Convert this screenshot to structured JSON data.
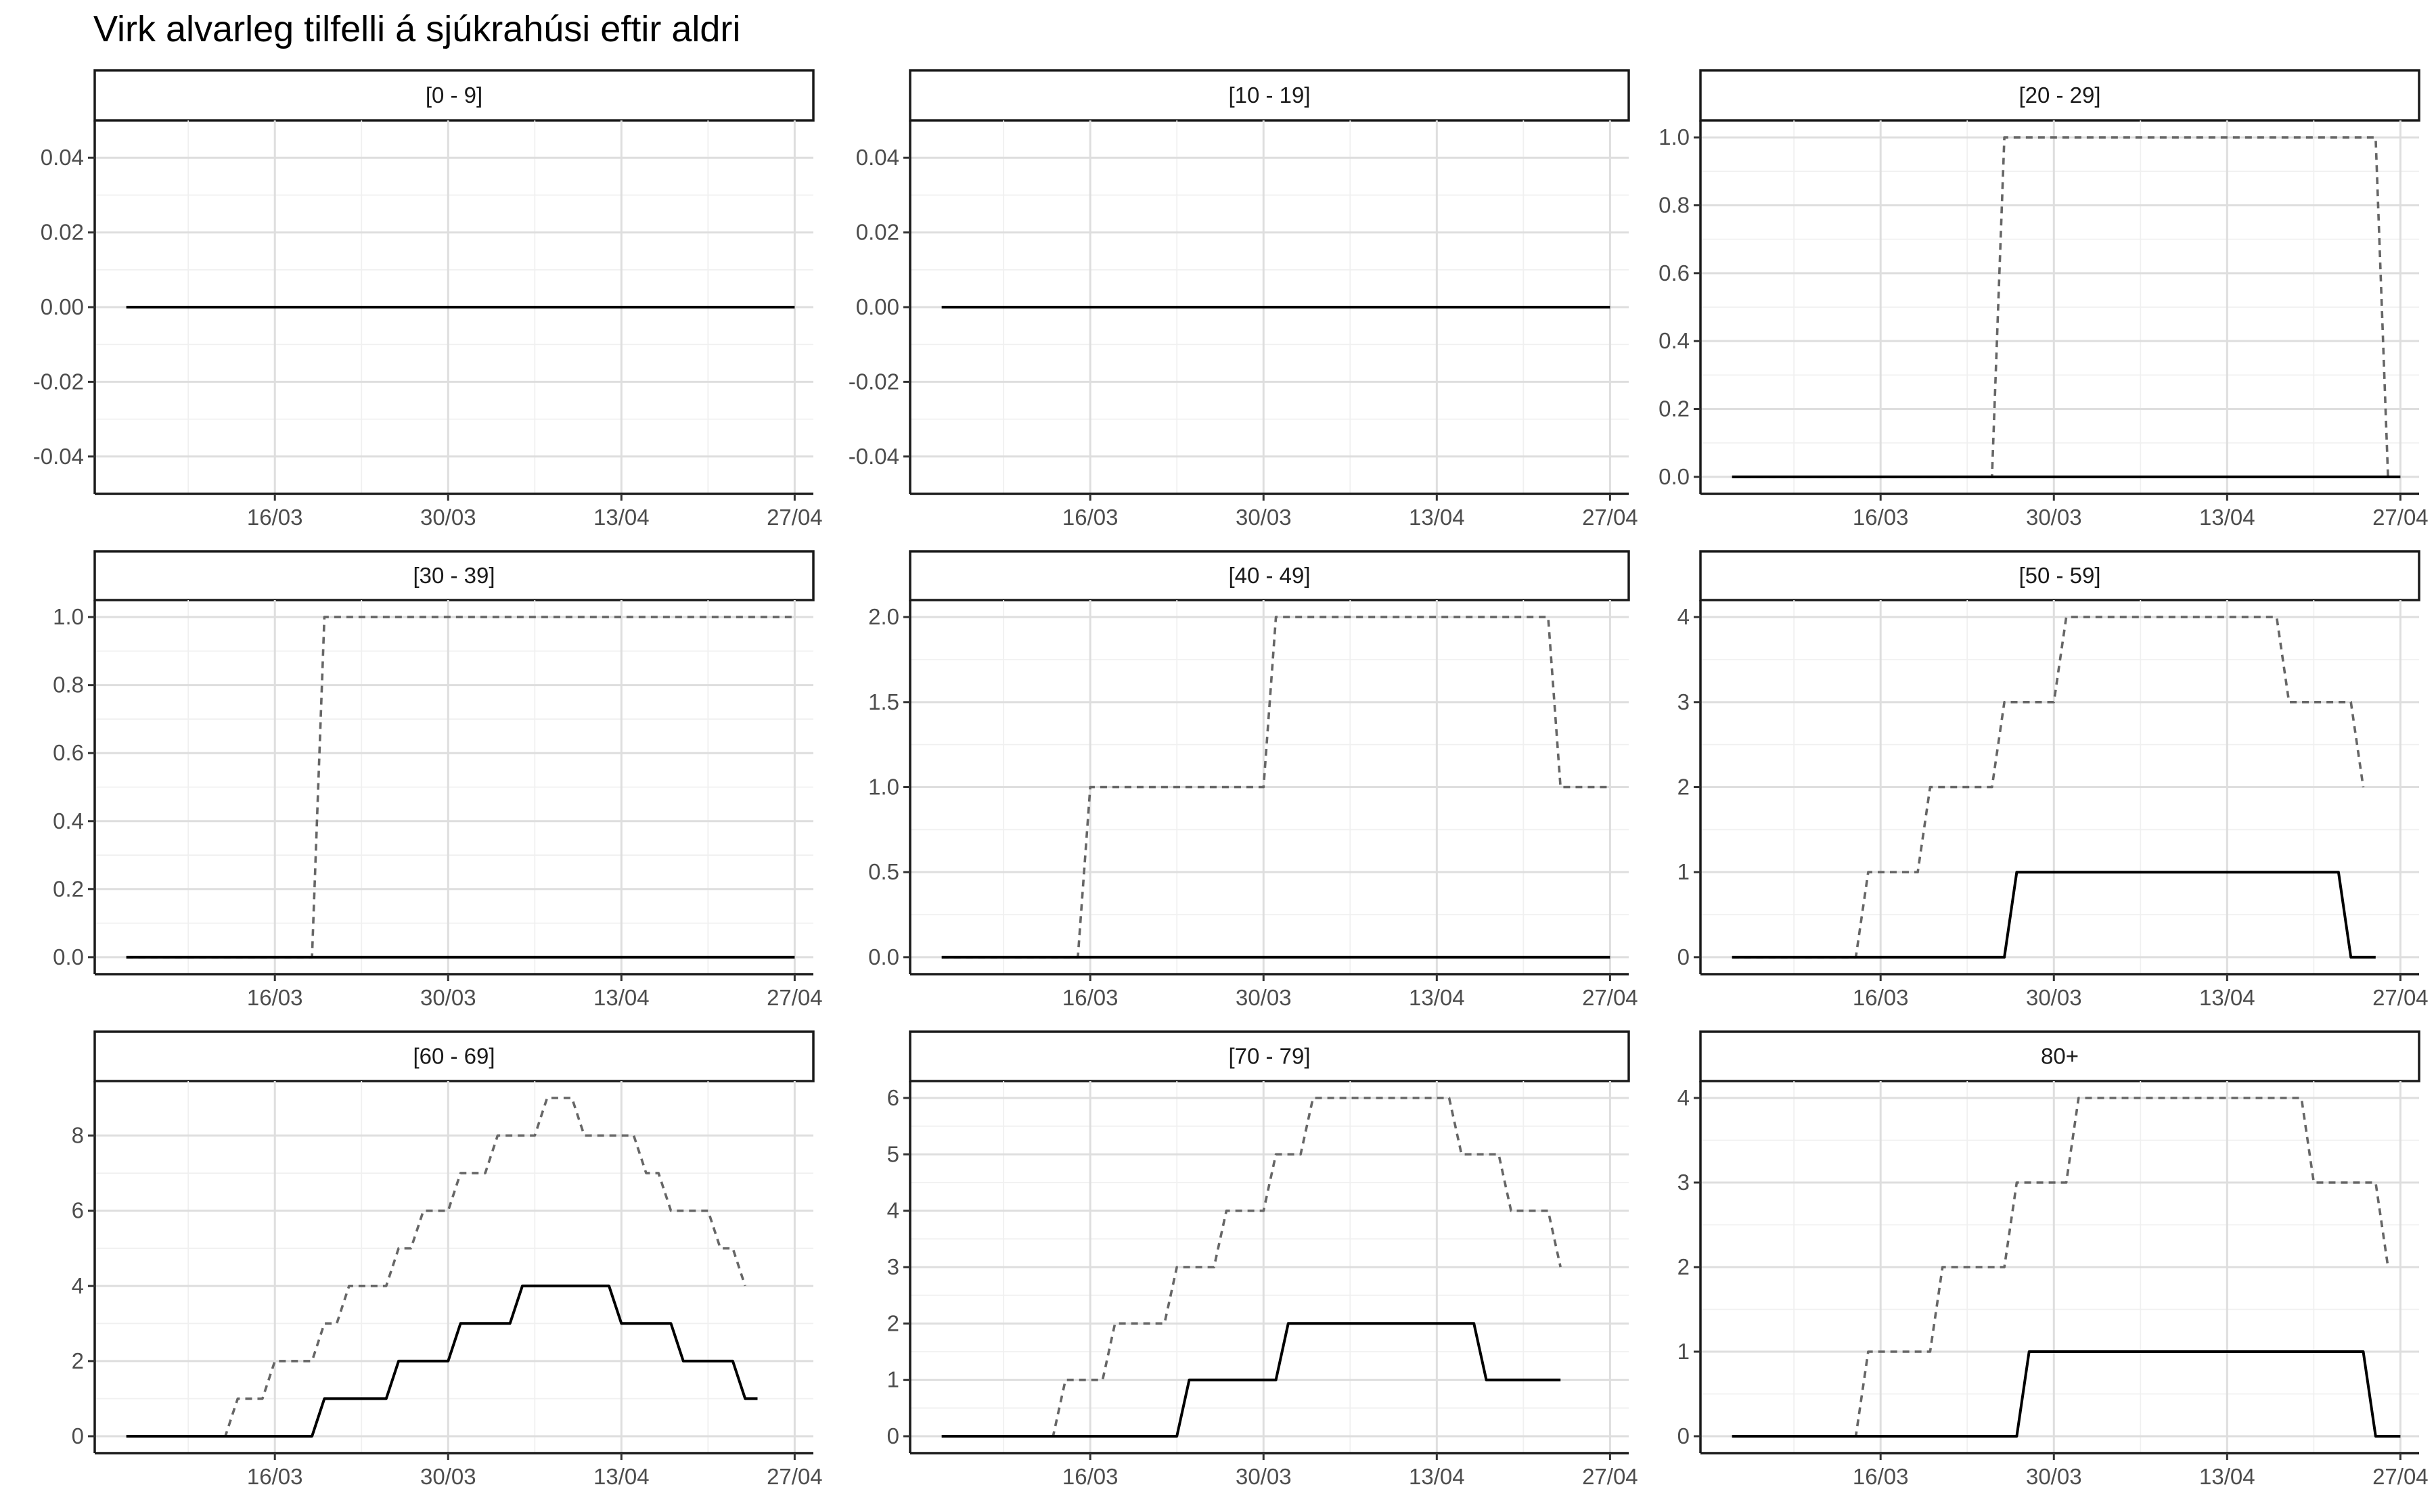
{
  "chart_data": {
    "type": "line",
    "title": "Virk alvarleg tilfelli á sjúkrahúsi eftir aldri",
    "xlabel": "",
    "ylabel": "",
    "x_start": "2020-03-04",
    "x_end": "2020-04-27",
    "x_ticks": [
      {
        "date": "2020-03-16",
        "label": "16/03"
      },
      {
        "date": "2020-03-30",
        "label": "30/03"
      },
      {
        "date": "2020-04-13",
        "label": "13/04"
      },
      {
        "date": "2020-04-27",
        "label": "27/04"
      }
    ],
    "grid": true,
    "legend": "none",
    "series_styles": {
      "dashed": {
        "color": "#666666",
        "dash": "10 8"
      },
      "solid": {
        "color": "#000000",
        "dash": ""
      }
    },
    "panels": [
      {
        "label": "[0 - 9]",
        "ylim": [
          -0.05,
          0.05
        ],
        "y_ticks": [
          {
            "value": -0.04,
            "label": "-0.04"
          },
          {
            "value": -0.02,
            "label": "-0.02"
          },
          {
            "value": 0,
            "label": "0.00"
          },
          {
            "value": 0.02,
            "label": "0.02"
          },
          {
            "value": 0.04,
            "label": "0.04"
          }
        ],
        "dashed": [
          [
            "2020-03-04",
            0
          ],
          [
            "2020-04-27",
            0
          ]
        ],
        "solid": [
          [
            "2020-03-04",
            0
          ],
          [
            "2020-04-27",
            0
          ]
        ]
      },
      {
        "label": "[10 - 19]",
        "ylim": [
          -0.05,
          0.05
        ],
        "y_ticks": [
          {
            "value": -0.04,
            "label": "-0.04"
          },
          {
            "value": -0.02,
            "label": "-0.02"
          },
          {
            "value": 0,
            "label": "0.00"
          },
          {
            "value": 0.02,
            "label": "0.02"
          },
          {
            "value": 0.04,
            "label": "0.04"
          }
        ],
        "dashed": [
          [
            "2020-03-04",
            0
          ],
          [
            "2020-04-27",
            0
          ]
        ],
        "solid": [
          [
            "2020-03-04",
            0
          ],
          [
            "2020-04-27",
            0
          ]
        ]
      },
      {
        "label": "[20 - 29]",
        "ylim": [
          -0.05,
          1.05
        ],
        "y_ticks": [
          {
            "value": 0,
            "label": "0.0"
          },
          {
            "value": 0.2,
            "label": "0.2"
          },
          {
            "value": 0.4,
            "label": "0.4"
          },
          {
            "value": 0.6,
            "label": "0.6"
          },
          {
            "value": 0.8,
            "label": "0.8"
          },
          {
            "value": 1.0,
            "label": "1.0"
          }
        ],
        "dashed": [
          [
            "2020-03-04",
            0
          ],
          [
            "2020-03-25",
            0
          ],
          [
            "2020-03-26",
            1
          ],
          [
            "2020-04-25",
            1
          ],
          [
            "2020-04-26",
            0
          ],
          [
            "2020-04-27",
            0
          ]
        ],
        "solid": [
          [
            "2020-03-04",
            0
          ],
          [
            "2020-04-27",
            0
          ]
        ]
      },
      {
        "label": "[30 - 39]",
        "ylim": [
          -0.05,
          1.05
        ],
        "y_ticks": [
          {
            "value": 0,
            "label": "0.0"
          },
          {
            "value": 0.2,
            "label": "0.2"
          },
          {
            "value": 0.4,
            "label": "0.4"
          },
          {
            "value": 0.6,
            "label": "0.6"
          },
          {
            "value": 0.8,
            "label": "0.8"
          },
          {
            "value": 1.0,
            "label": "1.0"
          }
        ],
        "dashed": [
          [
            "2020-03-04",
            0
          ],
          [
            "2020-03-19",
            0
          ],
          [
            "2020-03-20",
            1
          ],
          [
            "2020-04-27",
            1
          ]
        ],
        "solid": [
          [
            "2020-03-04",
            0
          ],
          [
            "2020-04-27",
            0
          ]
        ]
      },
      {
        "label": "[40 - 49]",
        "ylim": [
          -0.1,
          2.1
        ],
        "y_ticks": [
          {
            "value": 0,
            "label": "0.0"
          },
          {
            "value": 0.5,
            "label": "0.5"
          },
          {
            "value": 1.0,
            "label": "1.0"
          },
          {
            "value": 1.5,
            "label": "1.5"
          },
          {
            "value": 2.0,
            "label": "2.0"
          }
        ],
        "dashed": [
          [
            "2020-03-04",
            0
          ],
          [
            "2020-03-15",
            0
          ],
          [
            "2020-03-16",
            1
          ],
          [
            "2020-03-30",
            1
          ],
          [
            "2020-03-31",
            2
          ],
          [
            "2020-04-22",
            2
          ],
          [
            "2020-04-23",
            1
          ],
          [
            "2020-04-27",
            1
          ]
        ],
        "solid": [
          [
            "2020-03-04",
            0
          ],
          [
            "2020-04-27",
            0
          ]
        ]
      },
      {
        "label": "[50 - 59]",
        "ylim": [
          -0.2,
          4.2
        ],
        "y_ticks": [
          {
            "value": 0,
            "label": "0"
          },
          {
            "value": 1,
            "label": "1"
          },
          {
            "value": 2,
            "label": "2"
          },
          {
            "value": 3,
            "label": "3"
          },
          {
            "value": 4,
            "label": "4"
          }
        ],
        "dashed": [
          [
            "2020-03-04",
            0
          ],
          [
            "2020-03-14",
            0
          ],
          [
            "2020-03-15",
            1
          ],
          [
            "2020-03-19",
            1
          ],
          [
            "2020-03-20",
            2
          ],
          [
            "2020-03-25",
            2
          ],
          [
            "2020-03-26",
            3
          ],
          [
            "2020-03-30",
            3
          ],
          [
            "2020-03-31",
            4
          ],
          [
            "2020-04-17",
            4
          ],
          [
            "2020-04-18",
            3
          ],
          [
            "2020-04-23",
            3
          ],
          [
            "2020-04-24",
            2
          ]
        ],
        "solid": [
          [
            "2020-03-04",
            0
          ],
          [
            "2020-03-26",
            0
          ],
          [
            "2020-03-27",
            1
          ],
          [
            "2020-04-22",
            1
          ],
          [
            "2020-04-23",
            0
          ],
          [
            "2020-04-25",
            0
          ]
        ]
      },
      {
        "label": "[60 - 69]",
        "ylim": [
          -0.45,
          9.45
        ],
        "y_ticks": [
          {
            "value": 0,
            "label": "0"
          },
          {
            "value": 2,
            "label": "2"
          },
          {
            "value": 4,
            "label": "4"
          },
          {
            "value": 6,
            "label": "6"
          },
          {
            "value": 8,
            "label": "8"
          }
        ],
        "dashed": [
          [
            "2020-03-04",
            0
          ],
          [
            "2020-03-12",
            0
          ],
          [
            "2020-03-13",
            1
          ],
          [
            "2020-03-15",
            1
          ],
          [
            "2020-03-16",
            2
          ],
          [
            "2020-03-19",
            2
          ],
          [
            "2020-03-20",
            3
          ],
          [
            "2020-03-21",
            3
          ],
          [
            "2020-03-22",
            4
          ],
          [
            "2020-03-25",
            4
          ],
          [
            "2020-03-26",
            5
          ],
          [
            "2020-03-27",
            5
          ],
          [
            "2020-03-28",
            6
          ],
          [
            "2020-03-30",
            6
          ],
          [
            "2020-03-31",
            7
          ],
          [
            "2020-04-02",
            7
          ],
          [
            "2020-04-03",
            8
          ],
          [
            "2020-04-06",
            8
          ],
          [
            "2020-04-07",
            9
          ],
          [
            "2020-04-09",
            9
          ],
          [
            "2020-04-10",
            8
          ],
          [
            "2020-04-14",
            8
          ],
          [
            "2020-04-15",
            7
          ],
          [
            "2020-04-16",
            7
          ],
          [
            "2020-04-17",
            6
          ],
          [
            "2020-04-20",
            6
          ],
          [
            "2020-04-21",
            5
          ],
          [
            "2020-04-22",
            5
          ],
          [
            "2020-04-23",
            4
          ]
        ],
        "solid": [
          [
            "2020-03-04",
            0
          ],
          [
            "2020-03-19",
            0
          ],
          [
            "2020-03-20",
            1
          ],
          [
            "2020-03-25",
            1
          ],
          [
            "2020-03-26",
            2
          ],
          [
            "2020-03-30",
            2
          ],
          [
            "2020-03-31",
            3
          ],
          [
            "2020-04-04",
            3
          ],
          [
            "2020-04-05",
            4
          ],
          [
            "2020-04-12",
            4
          ],
          [
            "2020-04-13",
            3
          ],
          [
            "2020-04-17",
            3
          ],
          [
            "2020-04-18",
            2
          ],
          [
            "2020-04-22",
            2
          ],
          [
            "2020-04-23",
            1
          ],
          [
            "2020-04-24",
            1
          ]
        ]
      },
      {
        "label": "[70 - 79]",
        "ylim": [
          -0.3,
          6.3
        ],
        "y_ticks": [
          {
            "value": 0,
            "label": "0"
          },
          {
            "value": 1,
            "label": "1"
          },
          {
            "value": 2,
            "label": "2"
          },
          {
            "value": 3,
            "label": "3"
          },
          {
            "value": 4,
            "label": "4"
          },
          {
            "value": 5,
            "label": "5"
          },
          {
            "value": 6,
            "label": "6"
          }
        ],
        "dashed": [
          [
            "2020-03-04",
            0
          ],
          [
            "2020-03-13",
            0
          ],
          [
            "2020-03-14",
            1
          ],
          [
            "2020-03-17",
            1
          ],
          [
            "2020-03-18",
            2
          ],
          [
            "2020-03-22",
            2
          ],
          [
            "2020-03-23",
            3
          ],
          [
            "2020-03-26",
            3
          ],
          [
            "2020-03-27",
            4
          ],
          [
            "2020-03-30",
            4
          ],
          [
            "2020-03-31",
            5
          ],
          [
            "2020-04-02",
            5
          ],
          [
            "2020-04-03",
            6
          ],
          [
            "2020-04-14",
            6
          ],
          [
            "2020-04-15",
            5
          ],
          [
            "2020-04-18",
            5
          ],
          [
            "2020-04-19",
            4
          ],
          [
            "2020-04-22",
            4
          ],
          [
            "2020-04-23",
            3
          ]
        ],
        "solid": [
          [
            "2020-03-04",
            0
          ],
          [
            "2020-03-23",
            0
          ],
          [
            "2020-03-24",
            1
          ],
          [
            "2020-03-31",
            1
          ],
          [
            "2020-04-01",
            2
          ],
          [
            "2020-04-16",
            2
          ],
          [
            "2020-04-17",
            1
          ],
          [
            "2020-04-23",
            1
          ]
        ]
      },
      {
        "label": "80+",
        "ylim": [
          -0.2,
          4.2
        ],
        "y_ticks": [
          {
            "value": 0,
            "label": "0"
          },
          {
            "value": 1,
            "label": "1"
          },
          {
            "value": 2,
            "label": "2"
          },
          {
            "value": 3,
            "label": "3"
          },
          {
            "value": 4,
            "label": "4"
          }
        ],
        "dashed": [
          [
            "2020-03-04",
            0
          ],
          [
            "2020-03-14",
            0
          ],
          [
            "2020-03-15",
            1
          ],
          [
            "2020-03-20",
            1
          ],
          [
            "2020-03-21",
            2
          ],
          [
            "2020-03-26",
            2
          ],
          [
            "2020-03-27",
            3
          ],
          [
            "2020-03-31",
            3
          ],
          [
            "2020-04-01",
            4
          ],
          [
            "2020-04-19",
            4
          ],
          [
            "2020-04-20",
            3
          ],
          [
            "2020-04-25",
            3
          ],
          [
            "2020-04-26",
            2
          ]
        ],
        "solid": [
          [
            "2020-03-04",
            0
          ],
          [
            "2020-03-27",
            0
          ],
          [
            "2020-03-28",
            1
          ],
          [
            "2020-04-24",
            1
          ],
          [
            "2020-04-25",
            0
          ],
          [
            "2020-04-27",
            0
          ]
        ]
      }
    ]
  }
}
